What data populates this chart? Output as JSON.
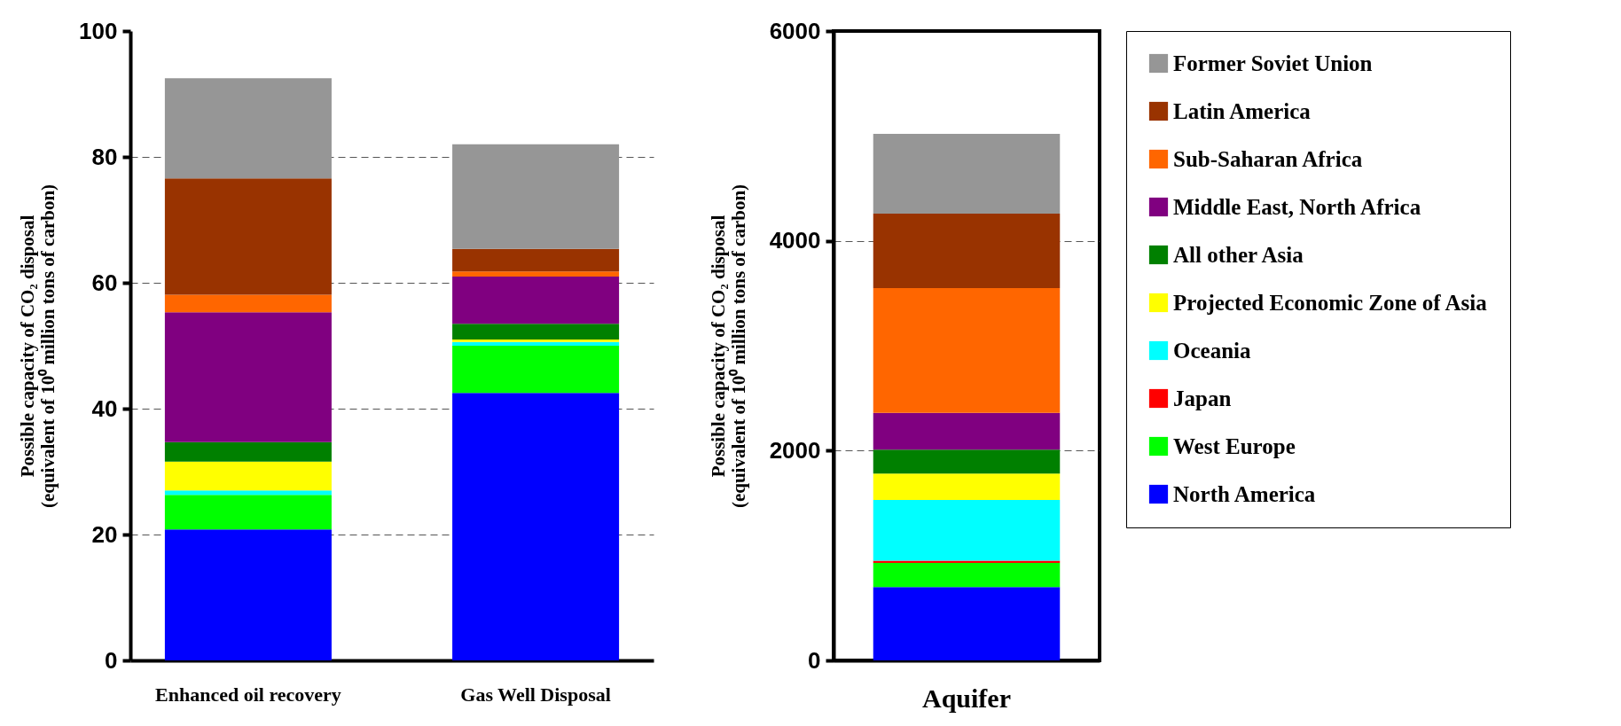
{
  "chart_data": [
    {
      "type": "bar",
      "stacked": true,
      "categories": [
        "Enhanced oil recovery",
        "Gas Well Disposal"
      ],
      "ylabel": "Possible capacity of CO₂ disposal\n(equivalent of 10⁰ million tons of carbon)",
      "ylim": [
        0,
        100
      ],
      "yticks": [
        0,
        20,
        40,
        60,
        80,
        100
      ],
      "grid": "y",
      "series": [
        {
          "color": "#0000ff",
          "values": [
            20.8,
            42.5
          ]
        },
        {
          "color": "#00ff00",
          "values": [
            5.5,
            7.5
          ]
        },
        {
          "color": "#ff0000",
          "values": [
            0,
            0
          ]
        },
        {
          "color": "#00ffff",
          "values": [
            0.7,
            0.6
          ]
        },
        {
          "color": "#ffff00",
          "values": [
            4.6,
            0.4
          ]
        },
        {
          "color": "#008000",
          "values": [
            3.1,
            2.5
          ]
        },
        {
          "color": "#800080",
          "values": [
            20.6,
            7.5
          ]
        },
        {
          "color": "#ff6600",
          "values": [
            2.8,
            0.8
          ]
        },
        {
          "color": "#993300",
          "values": [
            18.5,
            3.6
          ]
        },
        {
          "color": "#969696",
          "values": [
            15.9,
            16.6
          ]
        }
      ]
    },
    {
      "type": "bar",
      "stacked": true,
      "categories": [
        "Aquifer"
      ],
      "ylabel": "Possible capacity of CO₂ disposal\n(equivalent of 10⁰ million tons of carbon)",
      "ylim": [
        0,
        6000
      ],
      "yticks": [
        0,
        2000,
        4000,
        6000
      ],
      "grid": "y",
      "legend": "right",
      "series": [
        {
          "name": "North America",
          "color": "#0000ff",
          "values": [
            700
          ]
        },
        {
          "name": "West Europe",
          "color": "#00ff00",
          "values": [
            230
          ]
        },
        {
          "name": "Japan",
          "color": "#ff0000",
          "values": [
            20
          ]
        },
        {
          "name": "Oceania",
          "color": "#00ffff",
          "values": [
            580
          ]
        },
        {
          "name": "Projected Economic Zone of Asia",
          "color": "#ffff00",
          "values": [
            250
          ]
        },
        {
          "name": "All other Asia",
          "color": "#008000",
          "values": [
            230
          ]
        },
        {
          "name": "Middle East, North Africa",
          "color": "#800080",
          "values": [
            350
          ]
        },
        {
          "name": "Sub-Saharan Africa",
          "color": "#ff6600",
          "values": [
            1190
          ]
        },
        {
          "name": "Latin America",
          "color": "#993300",
          "values": [
            710
          ]
        },
        {
          "name": "Former Soviet Union",
          "color": "#969696",
          "values": [
            760
          ]
        }
      ]
    }
  ]
}
